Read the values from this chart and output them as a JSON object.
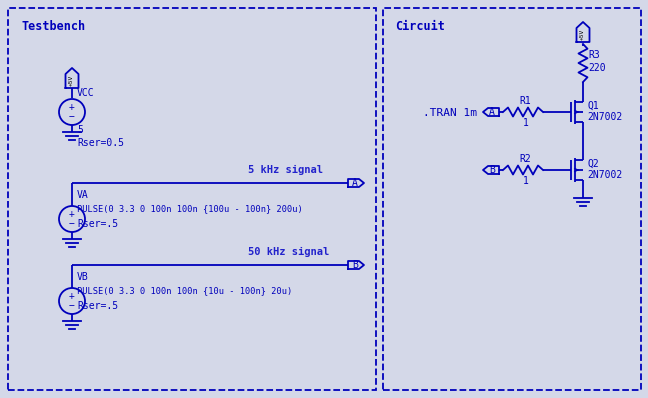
{
  "bg_color": "#d4d8e8",
  "border_color": "#0000bb",
  "line_color": "#0000bb",
  "text_color": "#0000bb",
  "fig_width": 6.48,
  "fig_height": 3.98,
  "dpi": 100,
  "testbench_label": "Testbench",
  "circuit_label": "Circuit",
  "tran_text": ".TRAN 1m",
  "vcc_label": "VCC",
  "v5_label": "5",
  "rser05_label": "Rser=0.5",
  "va_label": "VA",
  "va_pulse": "PULSE(0 3.3 0 100n 100n {100u - 100n} 200u)",
  "rser5a_label": "Rser=.5",
  "vb_label": "VB",
  "vb_pulse": "PULSE(0 3.3 0 100n 100n {10u - 100n} 20u)",
  "rser5b_label": "Rser=.5",
  "signal_a_label": "5 kHz signal",
  "signal_b_label": "50 kHz signal",
  "r1_label": "R1",
  "r1_val": "1",
  "r2_label": "R2",
  "r2_val": "1",
  "r3_label": "R3",
  "r3_val": "220",
  "q1_label": "Q1",
  "q1_type": "2N7002",
  "q2_label": "Q2",
  "q2_type": "2N7002"
}
